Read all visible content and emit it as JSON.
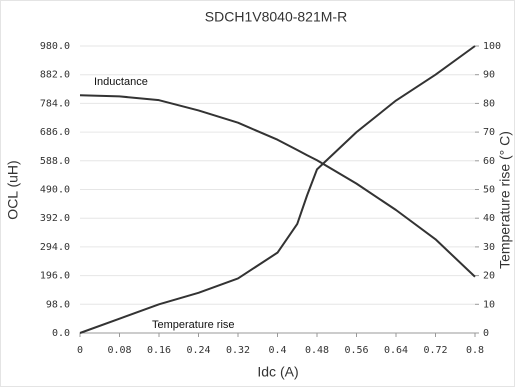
{
  "chart_data": {
    "type": "line",
    "title": "SDCH1V8040-821M-R",
    "x_label": "Idc (A)",
    "y_label": "OCL (uH)",
    "y2_label": "Temperature rise (° C)",
    "annotations": [
      "Inductance",
      "Temperature rise"
    ],
    "x": [
      0,
      0.08,
      0.16,
      0.24,
      0.32,
      0.4,
      0.44,
      0.46,
      0.48,
      0.56,
      0.64,
      0.72,
      0.8
    ],
    "series": [
      {
        "name": "Inductance",
        "color": "#333333",
        "values": [
          812,
          808,
          795,
          760,
          718,
          660,
          625,
          607,
          590,
          510,
          420,
          320,
          192
        ]
      },
      {
        "name": "Temperature rise",
        "color": "#333333",
        "axis": "y2",
        "values": [
          0,
          5,
          10,
          14,
          19,
          28,
          38,
          48,
          57,
          70,
          81,
          90,
          100
        ]
      }
    ],
    "xlim": [
      0,
      0.8
    ],
    "xticks": [
      0,
      0.08,
      0.16,
      0.24,
      0.32,
      0.4,
      0.48,
      0.56,
      0.64,
      0.72,
      0.8
    ],
    "ylim": [
      0,
      980
    ],
    "yticks": [
      {
        "value": 0,
        "label": "0.0"
      },
      {
        "value": 98,
        "label": "98.0"
      },
      {
        "value": 196,
        "label": "196.0"
      },
      {
        "value": 294,
        "label": "294.0"
      },
      {
        "value": 392,
        "label": "392.0"
      },
      {
        "value": 490,
        "label": "490.0"
      },
      {
        "value": 588,
        "label": "588.0"
      },
      {
        "value": 686,
        "label": "686.0"
      },
      {
        "value": 784,
        "label": "784.0"
      },
      {
        "value": 882,
        "label": "882.0"
      },
      {
        "value": 980,
        "label": "980.0"
      }
    ],
    "y2lim": [
      0,
      100
    ],
    "y2ticks": [
      0,
      10,
      20,
      30,
      40,
      50,
      60,
      70,
      80,
      90,
      100
    ],
    "grid": true
  }
}
